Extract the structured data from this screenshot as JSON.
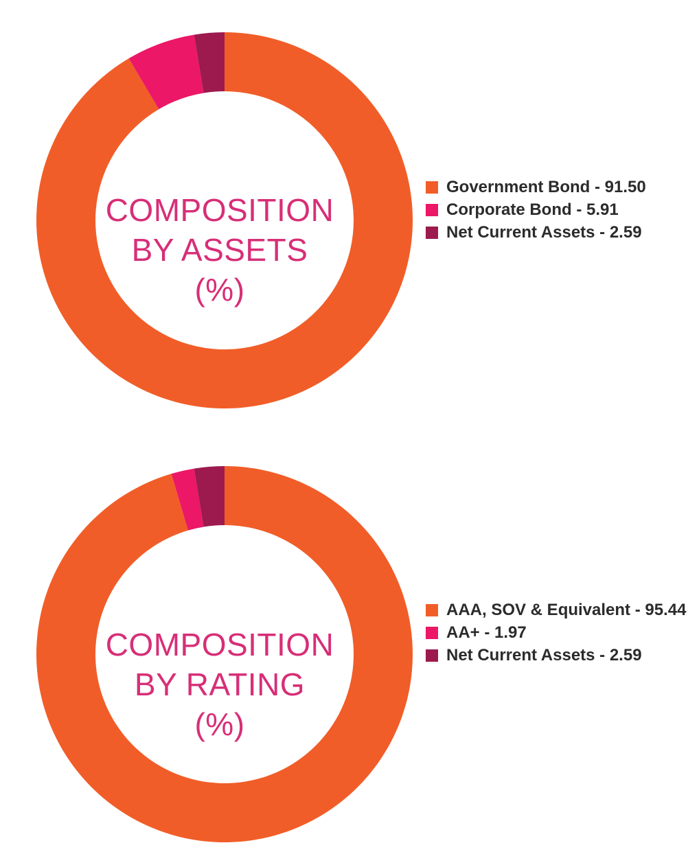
{
  "colors": {
    "orange": "#f15d28",
    "pink": "#ec1766",
    "maroon": "#9c1a4e",
    "title": "#d72e77"
  },
  "chart_data": [
    {
      "type": "pie",
      "title": [
        "COMPOSITION",
        "BY ASSETS",
        "(%)"
      ],
      "categories": [
        "Government Bond",
        "Corporate Bond",
        "Net Current Assets"
      ],
      "values": [
        91.5,
        5.91,
        2.59
      ],
      "legend": [
        "Government Bond - 91.50",
        "Corporate Bond - 5.91",
        "Net Current Assets - 2.59"
      ],
      "legend_placement": "right"
    },
    {
      "type": "pie",
      "title": [
        "COMPOSITION",
        "BY RATING",
        "(%)"
      ],
      "categories": [
        "AAA, SOV & Equivalent",
        "AA+",
        "Net Current Assets"
      ],
      "values": [
        95.44,
        1.97,
        2.59
      ],
      "legend": [
        "AAA, SOV & Equivalent - 95.44",
        "AA+ - 1.97",
        "Net Current Assets - 2.59"
      ],
      "legend_placement": "right"
    }
  ]
}
